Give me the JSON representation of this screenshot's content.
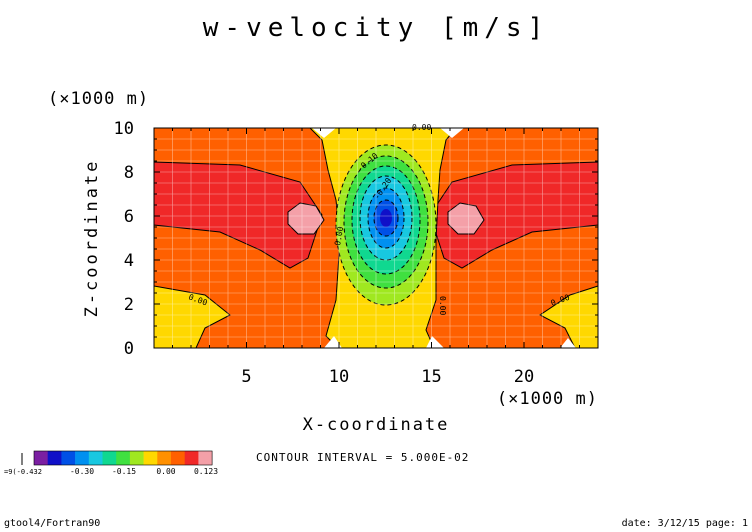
{
  "chart_data": {
    "type": "heatmap",
    "title": "w-velocity [m/s]",
    "xlabel": "X-coordinate",
    "ylabel": "Z-coordinate",
    "x_unit": "(×1000 m)",
    "y_unit": "(×1000 m)",
    "xlim": [
      0,
      24
    ],
    "ylim": [
      0,
      10
    ],
    "x_ticks": [
      "5",
      "10",
      "15",
      "20"
    ],
    "y_ticks": [
      "0",
      "2",
      "4",
      "6",
      "8",
      "10"
    ],
    "grid": true,
    "contour_interval": "CONTOUR INTERVAL = 5.000E-02",
    "contour_labels": [
      "0.00",
      "-0.10",
      "-0.20",
      "0.00",
      "0.00",
      "0.00",
      "0.00"
    ],
    "colorbar": {
      "labels": [
        "-0.30",
        "-0.15",
        "0.00",
        "0.123"
      ],
      "underflow_label": "=9(-0.432",
      "colors": [
        "#7b1fa2",
        "#1010c8",
        "#0050e6",
        "#0090f0",
        "#18c8e0",
        "#10d890",
        "#40e040",
        "#a0e820",
        "#ffd800",
        "#ff9000",
        "#ff6000",
        "#f02828",
        "#f4a0a8"
      ]
    },
    "regions": [
      {
        "level": "0.00 to 0.05",
        "color": "#ffd800"
      },
      {
        "level": "0.05 to 0.10",
        "color": "#ff6000"
      },
      {
        "level": "0.10 to 0.123",
        "color": "#f02828"
      },
      {
        "level": "max",
        "color": "#f4a0a8"
      },
      {
        "level": "min -0.432",
        "color": "#1010c8"
      }
    ]
  },
  "footer": {
    "left": "gtool4/Fortran90",
    "right": "date: 3/12/15 page: 1"
  }
}
